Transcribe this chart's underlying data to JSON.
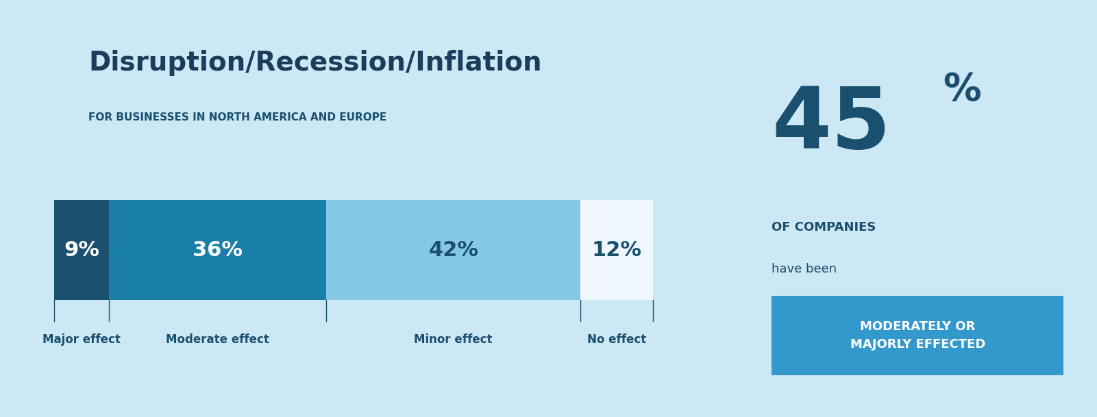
{
  "title": "Disruption/Recession/Inflation",
  "subtitle": "FOR BUSINESSES IN NORTH AMERICA AND EUROPE",
  "background_color": "#cde8f5",
  "bar_segments": [
    {
      "label": "Major effect",
      "value": 9,
      "color": "#1a4f6e",
      "text_color": "#ffffff"
    },
    {
      "label": "Moderate effect",
      "value": 36,
      "color": "#1a7fa8",
      "text_color": "#ffffff"
    },
    {
      "label": "Minor effect",
      "value": 42,
      "color": "#85c8e8",
      "text_color": "#1a4f6e"
    },
    {
      "label": "No effect",
      "value": 12,
      "color": "#f0f8ff",
      "text_color": "#1a4f6e"
    }
  ],
  "stat_number": "45",
  "stat_percent": "%",
  "stat_label1": "OF COMPANIES",
  "stat_label2": "have been",
  "stat_highlight": "MODERATELY OR\nMAJORLY EFFECTED",
  "stat_highlight_bg": "#3399cc",
  "title_color": "#1a3d5c",
  "subtitle_color": "#1a4f6e",
  "label_color": "#1a4f6e",
  "stat_color": "#1a4f6e",
  "title_fontsize": 28,
  "subtitle_fontsize": 11,
  "bar_label_fontsize": 22,
  "tick_label_fontsize": 12,
  "stat_number_fontsize": 90,
  "stat_percent_fontsize": 40,
  "stat_label1_fontsize": 13,
  "stat_label2_fontsize": 13,
  "stat_highlight_fontsize": 13
}
